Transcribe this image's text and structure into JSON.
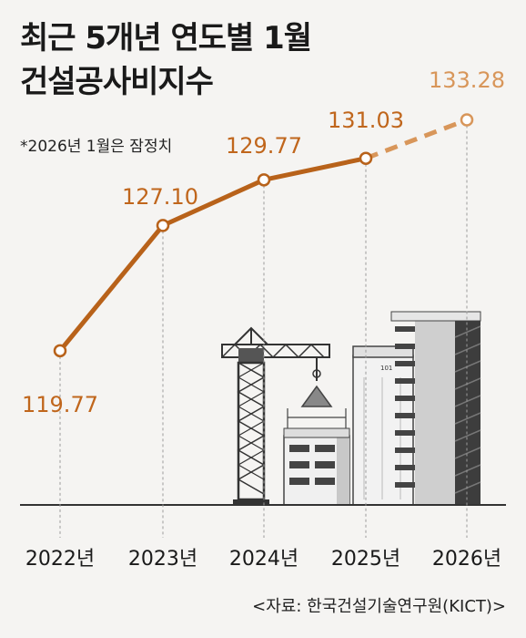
{
  "title_line1": "최근 5개년 연도별 1월",
  "title_line2": "건설공사비지수",
  "note": "*2026년 1월은 잠정치",
  "source": "<자료: 한국건설기술연구원(KICT)>",
  "colors": {
    "line": "#b8621a",
    "label": "#c0661c",
    "label_estimate": "#d8965a",
    "building": "#4a4a4a",
    "background": "#f5f4f2"
  },
  "building_sign": "101",
  "chart_data": {
    "type": "line",
    "title": "최근 5개년 연도별 1월 건설공사비지수",
    "categories": [
      "2022년",
      "2023년",
      "2024년",
      "2025년",
      "2026년"
    ],
    "values": [
      119.77,
      127.1,
      129.77,
      131.03,
      133.28
    ],
    "value_labels": [
      "119.77",
      "127.10",
      "129.77",
      "131.03",
      "133.28"
    ],
    "estimated": [
      false,
      false,
      false,
      false,
      true
    ],
    "ylim": [
      118,
      134
    ],
    "grid": false,
    "legend": "none"
  }
}
